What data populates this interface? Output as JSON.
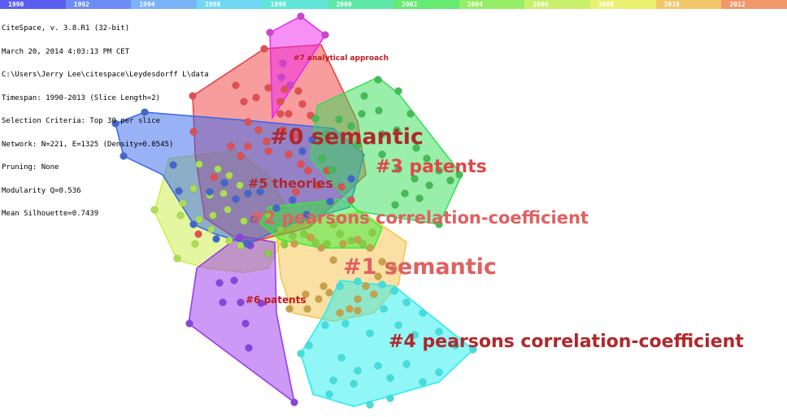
{
  "timeline": [
    {
      "year": "1990",
      "color": "#5a5ef0"
    },
    {
      "year": "1992",
      "color": "#6d8cf5"
    },
    {
      "year": "1994",
      "color": "#7ab3f8"
    },
    {
      "year": "1996",
      "color": "#6fd8f5"
    },
    {
      "year": "1998",
      "color": "#5fe6d6"
    },
    {
      "year": "2000",
      "color": "#5fe9a8"
    },
    {
      "year": "2002",
      "color": "#66ec72"
    },
    {
      "year": "2004",
      "color": "#95ee66"
    },
    {
      "year": "2006",
      "color": "#c9f06a"
    },
    {
      "year": "2008",
      "color": "#eaf070"
    },
    {
      "year": "2010",
      "color": "#f4c66a"
    },
    {
      "year": "2012",
      "color": "#f0986a"
    }
  ],
  "info_lines": [
    "CiteSpace, v. 3.8.R1 (32-bit)",
    "March 20, 2014 4:03:13 PM CET",
    "C:\\Users\\Jerry Lee\\citespace\\Leydesdorff L\\data",
    "Timespan: 1990-2013 (Slice Length=2)",
    "Selection Criteria: Top 30 per slice",
    "Network: N=221, E=1325 (Density=0.0545)",
    "Pruning: None",
    "Modularity Q=0.536",
    "Mean Silhouette=0.7439"
  ],
  "clusters": [
    {
      "id": "0",
      "label": "#0 semantic",
      "color": "#ef3b3b",
      "dot": "#e05050",
      "label_color": "#b0282c"
    },
    {
      "id": "1",
      "label": "#1  semantic",
      "color": "#f8c24a",
      "dot": "#c9a04a",
      "label_color": "#e06060"
    },
    {
      "id": "2",
      "label": "#2  pearsons correlation-coefficient",
      "color": "#33ee33",
      "dot": "#88cc44",
      "label_color": "#e06060"
    },
    {
      "id": "3",
      "label": "#3  patents",
      "color": "#33dd55",
      "dot": "#44bb55",
      "label_color": "#e04848"
    },
    {
      "id": "4",
      "label": "#4  pearsons correlation-coefficient",
      "color": "#22eeee",
      "dot": "#44dddd",
      "label_color": "#b0282c"
    },
    {
      "id": "5",
      "label": "#5 theories",
      "color": "#3366ee",
      "dot": "#4466cc",
      "label_color": "#b0282c"
    },
    {
      "id": "6",
      "label": "#6  patents",
      "color": "#9933ee",
      "dot": "#8844dd",
      "label_color": "#c01820"
    },
    {
      "id": "7",
      "label": "#7 analytical approach",
      "color": "#ee22ee",
      "dot": "#cc44cc",
      "label_color": "#c01820"
    },
    {
      "id": "8",
      "label": "",
      "color": "#ccee44",
      "dot": "#aadd55",
      "label_color": "#e06060"
    }
  ]
}
